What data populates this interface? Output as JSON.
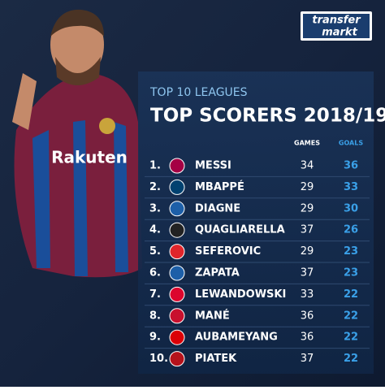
{
  "logo": {
    "line1": "transfer",
    "line2": "markt"
  },
  "header": {
    "subtitle": "TOP 10 LEAGUES",
    "title": "TOP SCORERS 2018/19"
  },
  "table": {
    "columns": [
      "GAMES",
      "GOALS"
    ],
    "rows": [
      {
        "rank": "1.",
        "player": "MESSI",
        "games": 34,
        "goals": 36
      },
      {
        "rank": "2.",
        "player": "MBAPPÉ",
        "games": 29,
        "goals": 33
      },
      {
        "rank": "3.",
        "player": "DIAGNE",
        "games": 29,
        "goals": 30
      },
      {
        "rank": "4.",
        "player": "QUAGLIARELLA",
        "games": 37,
        "goals": 26
      },
      {
        "rank": "5.",
        "player": "SEFEROVIC",
        "games": 29,
        "goals": 23
      },
      {
        "rank": "6.",
        "player": "ZAPATA",
        "games": 37,
        "goals": 23
      },
      {
        "rank": "7.",
        "player": "LEWANDOWSKI",
        "games": 33,
        "goals": 22
      },
      {
        "rank": "8.",
        "player": "MANÉ",
        "games": 36,
        "goals": 22
      },
      {
        "rank": "9.",
        "player": "AUBAMEYANG",
        "games": 36,
        "goals": 22
      },
      {
        "rank": "10.",
        "player": "PIATEK",
        "games": 37,
        "goals": 22
      }
    ]
  }
}
